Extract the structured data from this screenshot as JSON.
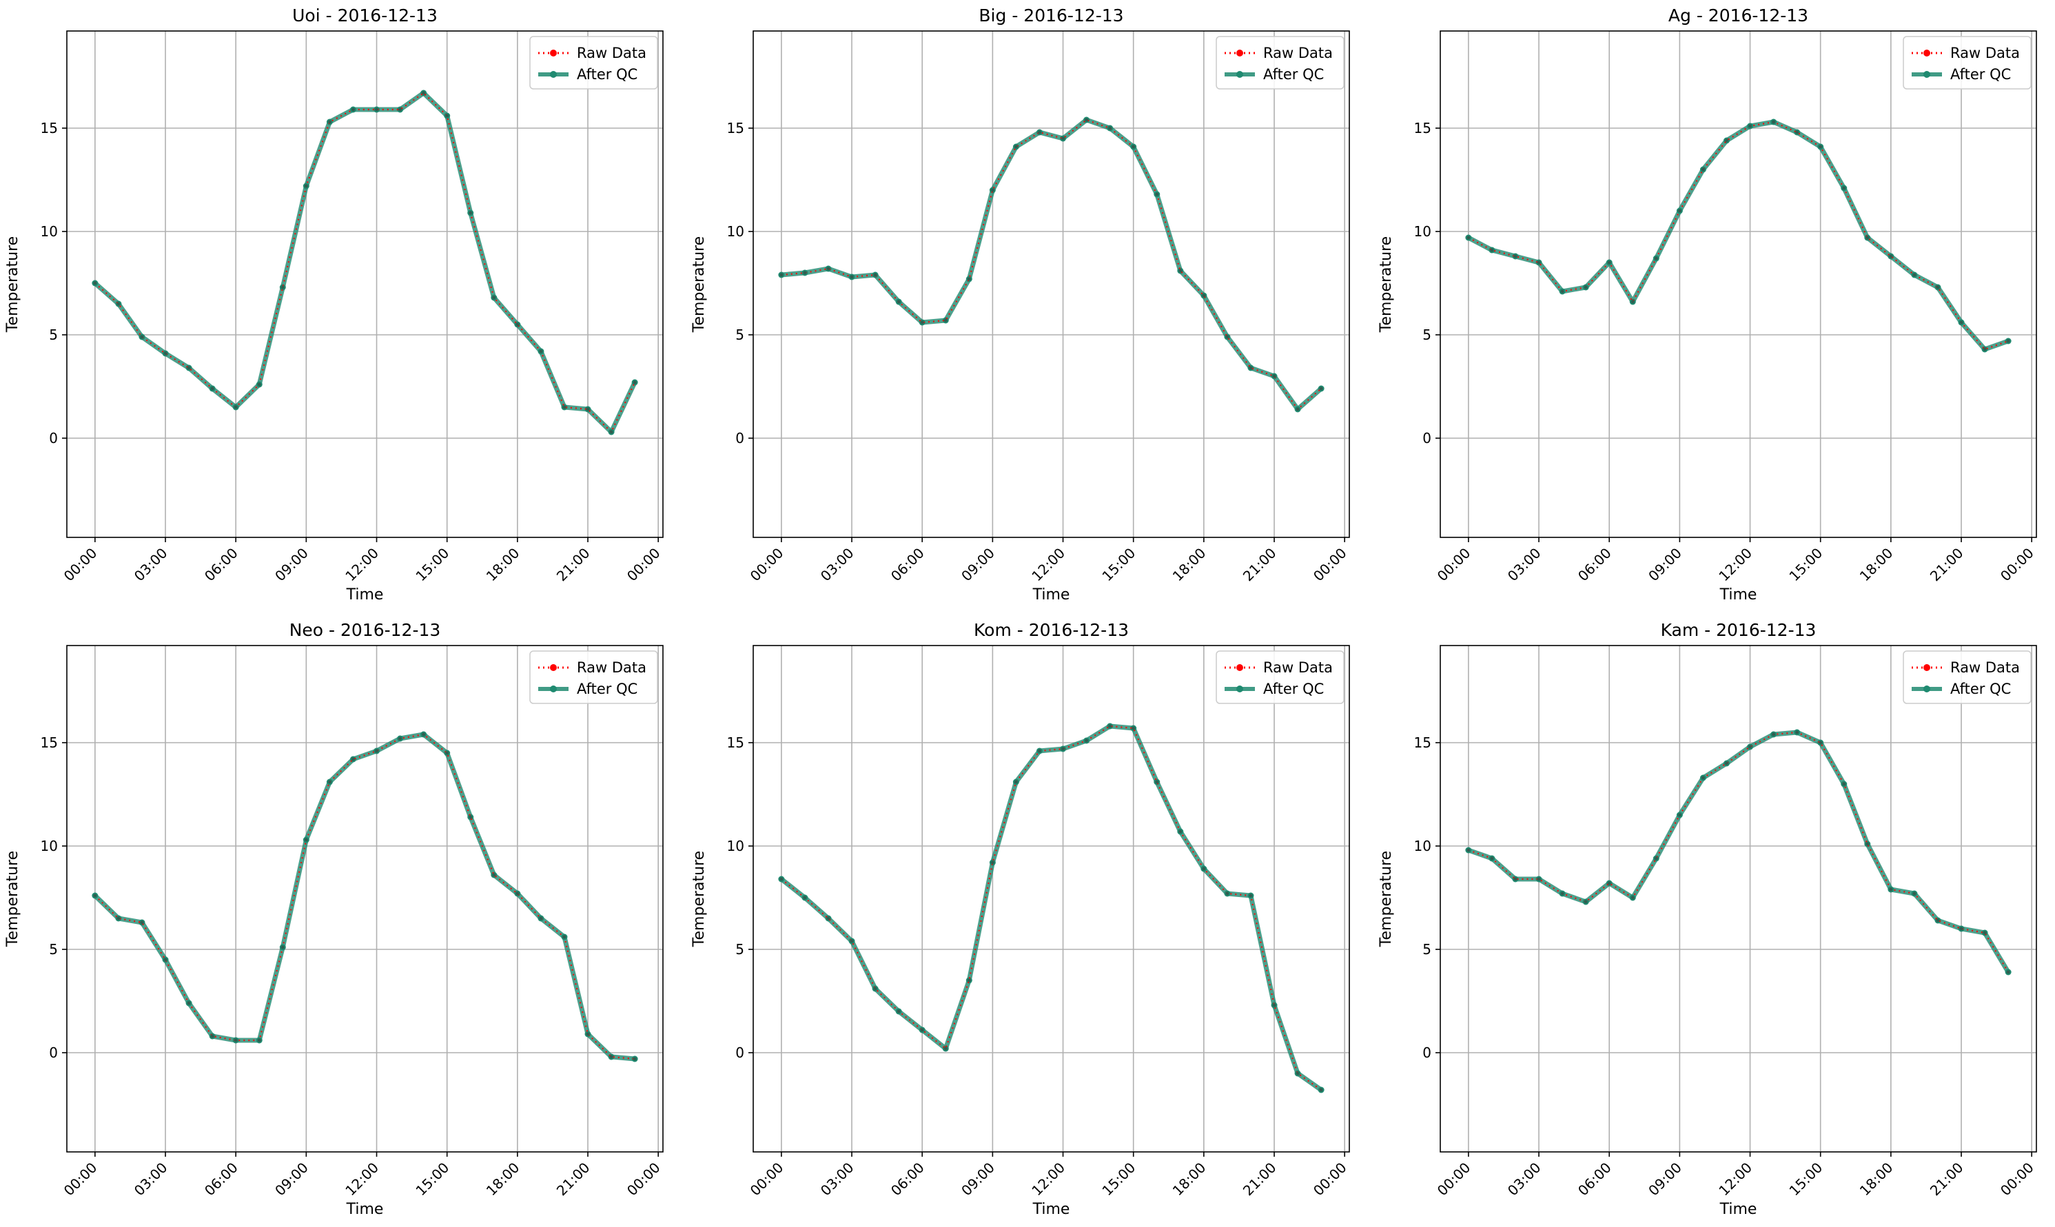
{
  "figure": {
    "colors": {
      "raw": "#ff0000",
      "qc": "#1f8a70",
      "grid": "#b0b0b0",
      "axes": "#000000"
    },
    "legend": {
      "raw_label": "Raw Data",
      "qc_label": "After QC",
      "placement": "upper right"
    }
  },
  "chart_data": [
    {
      "type": "line",
      "title": "Uoi - 2016-12-13",
      "xlabel": "Time",
      "ylabel": "Temperature",
      "xlim_hours": [
        -1.2,
        24.2
      ],
      "ylim": [
        -4.8,
        19.7
      ],
      "xtick_hours": [
        0,
        3,
        6,
        9,
        12,
        15,
        18,
        21,
        24
      ],
      "xtick_labels": [
        "00:00",
        "03:00",
        "06:00",
        "09:00",
        "12:00",
        "15:00",
        "18:00",
        "21:00",
        "00:00"
      ],
      "yticks": [
        0,
        5,
        10,
        15
      ],
      "ytick_labels": [
        "0",
        "5",
        "10",
        "15"
      ],
      "grid": true,
      "legend": "top-right",
      "x": [
        "00:00",
        "01:00",
        "02:00",
        "03:00",
        "04:00",
        "05:00",
        "06:00",
        "07:00",
        "08:00",
        "09:00",
        "10:00",
        "11:00",
        "12:00",
        "13:00",
        "14:00",
        "15:00",
        "16:00",
        "17:00",
        "18:00",
        "19:00",
        "20:00",
        "21:00",
        "22:00",
        "23:00"
      ],
      "series": [
        {
          "name": "Raw Data",
          "values": [
            7.5,
            6.5,
            4.9,
            4.1,
            3.4,
            2.4,
            1.5,
            2.6,
            7.3,
            12.2,
            15.3,
            15.9,
            15.9,
            15.9,
            16.7,
            15.6,
            10.9,
            6.8,
            5.5,
            4.2,
            1.5,
            1.4,
            0.3,
            2.7
          ]
        },
        {
          "name": "After QC",
          "values": [
            7.5,
            6.5,
            4.9,
            4.1,
            3.4,
            2.4,
            1.5,
            2.6,
            7.3,
            12.2,
            15.3,
            15.9,
            15.9,
            15.9,
            16.7,
            15.6,
            10.9,
            6.8,
            5.5,
            4.2,
            1.5,
            1.4,
            0.3,
            2.7
          ]
        }
      ]
    },
    {
      "type": "line",
      "title": "Big - 2016-12-13",
      "xlabel": "Time",
      "ylabel": "Temperature",
      "xlim_hours": [
        -1.2,
        24.2
      ],
      "ylim": [
        -4.8,
        19.7
      ],
      "xtick_hours": [
        0,
        3,
        6,
        9,
        12,
        15,
        18,
        21,
        24
      ],
      "xtick_labels": [
        "00:00",
        "03:00",
        "06:00",
        "09:00",
        "12:00",
        "15:00",
        "18:00",
        "21:00",
        "00:00"
      ],
      "yticks": [
        0,
        5,
        10,
        15
      ],
      "ytick_labels": [
        "0",
        "5",
        "10",
        "15"
      ],
      "grid": true,
      "legend": "top-right",
      "x": [
        "00:00",
        "01:00",
        "02:00",
        "03:00",
        "04:00",
        "05:00",
        "06:00",
        "07:00",
        "08:00",
        "09:00",
        "10:00",
        "11:00",
        "12:00",
        "13:00",
        "14:00",
        "15:00",
        "16:00",
        "17:00",
        "18:00",
        "19:00",
        "20:00",
        "21:00",
        "22:00",
        "23:00"
      ],
      "series": [
        {
          "name": "Raw Data",
          "values": [
            7.9,
            8.0,
            8.2,
            7.8,
            7.9,
            6.6,
            5.6,
            5.7,
            7.7,
            12.0,
            14.1,
            14.8,
            14.5,
            15.4,
            15.0,
            14.1,
            11.8,
            8.1,
            6.9,
            4.9,
            3.4,
            3.0,
            1.4,
            2.4
          ]
        },
        {
          "name": "After QC",
          "values": [
            7.9,
            8.0,
            8.2,
            7.8,
            7.9,
            6.6,
            5.6,
            5.7,
            7.7,
            12.0,
            14.1,
            14.8,
            14.5,
            15.4,
            15.0,
            14.1,
            11.8,
            8.1,
            6.9,
            4.9,
            3.4,
            3.0,
            1.4,
            2.4
          ]
        }
      ]
    },
    {
      "type": "line",
      "title": "Ag - 2016-12-13",
      "xlabel": "Time",
      "ylabel": "Temperature",
      "xlim_hours": [
        -1.2,
        24.2
      ],
      "ylim": [
        -4.8,
        19.7
      ],
      "xtick_hours": [
        0,
        3,
        6,
        9,
        12,
        15,
        18,
        21,
        24
      ],
      "xtick_labels": [
        "00:00",
        "03:00",
        "06:00",
        "09:00",
        "12:00",
        "15:00",
        "18:00",
        "21:00",
        "00:00"
      ],
      "yticks": [
        0,
        5,
        10,
        15
      ],
      "ytick_labels": [
        "0",
        "5",
        "10",
        "15"
      ],
      "grid": true,
      "legend": "top-right",
      "x": [
        "00:00",
        "01:00",
        "02:00",
        "03:00",
        "04:00",
        "05:00",
        "06:00",
        "07:00",
        "08:00",
        "09:00",
        "10:00",
        "11:00",
        "12:00",
        "13:00",
        "14:00",
        "15:00",
        "16:00",
        "17:00",
        "18:00",
        "19:00",
        "20:00",
        "21:00",
        "22:00",
        "23:00"
      ],
      "series": [
        {
          "name": "Raw Data",
          "values": [
            9.7,
            9.1,
            8.8,
            8.5,
            7.1,
            7.3,
            8.5,
            6.6,
            8.7,
            11.0,
            13.0,
            14.4,
            15.1,
            15.3,
            14.8,
            14.1,
            12.1,
            9.7,
            8.8,
            7.9,
            7.3,
            5.6,
            4.3,
            4.7
          ]
        },
        {
          "name": "After QC",
          "values": [
            9.7,
            9.1,
            8.8,
            8.5,
            7.1,
            7.3,
            8.5,
            6.6,
            8.7,
            11.0,
            13.0,
            14.4,
            15.1,
            15.3,
            14.8,
            14.1,
            12.1,
            9.7,
            8.8,
            7.9,
            7.3,
            5.6,
            4.3,
            4.7
          ]
        }
      ]
    },
    {
      "type": "line",
      "title": "Neo - 2016-12-13",
      "xlabel": "Time",
      "ylabel": "Temperature",
      "xlim_hours": [
        -1.2,
        24.2
      ],
      "ylim": [
        -4.8,
        19.7
      ],
      "xtick_hours": [
        0,
        3,
        6,
        9,
        12,
        15,
        18,
        21,
        24
      ],
      "xtick_labels": [
        "00:00",
        "03:00",
        "06:00",
        "09:00",
        "12:00",
        "15:00",
        "18:00",
        "21:00",
        "00:00"
      ],
      "yticks": [
        0,
        5,
        10,
        15
      ],
      "ytick_labels": [
        "0",
        "5",
        "10",
        "15"
      ],
      "grid": true,
      "legend": "top-right",
      "x": [
        "00:00",
        "01:00",
        "02:00",
        "03:00",
        "04:00",
        "05:00",
        "06:00",
        "07:00",
        "08:00",
        "09:00",
        "10:00",
        "11:00",
        "12:00",
        "13:00",
        "14:00",
        "15:00",
        "16:00",
        "17:00",
        "18:00",
        "19:00",
        "20:00",
        "21:00",
        "22:00",
        "23:00"
      ],
      "series": [
        {
          "name": "Raw Data",
          "values": [
            7.6,
            6.5,
            6.3,
            4.5,
            2.4,
            0.8,
            0.6,
            0.6,
            5.1,
            10.3,
            13.1,
            14.2,
            14.6,
            15.2,
            15.4,
            14.5,
            11.4,
            8.6,
            7.7,
            6.5,
            5.6,
            0.9,
            -0.2,
            -0.3
          ]
        },
        {
          "name": "After QC",
          "values": [
            7.6,
            6.5,
            6.3,
            4.5,
            2.4,
            0.8,
            0.6,
            0.6,
            5.1,
            10.3,
            13.1,
            14.2,
            14.6,
            15.2,
            15.4,
            14.5,
            11.4,
            8.6,
            7.7,
            6.5,
            5.6,
            0.9,
            -0.2,
            -0.3
          ]
        }
      ]
    },
    {
      "type": "line",
      "title": "Kom - 2016-12-13",
      "xlabel": "Time",
      "ylabel": "Temperature",
      "xlim_hours": [
        -1.2,
        24.2
      ],
      "ylim": [
        -4.8,
        19.7
      ],
      "xtick_hours": [
        0,
        3,
        6,
        9,
        12,
        15,
        18,
        21,
        24
      ],
      "xtick_labels": [
        "00:00",
        "03:00",
        "06:00",
        "09:00",
        "12:00",
        "15:00",
        "18:00",
        "21:00",
        "00:00"
      ],
      "yticks": [
        0,
        5,
        10,
        15
      ],
      "ytick_labels": [
        "0",
        "5",
        "10",
        "15"
      ],
      "grid": true,
      "legend": "top-right",
      "x": [
        "00:00",
        "01:00",
        "02:00",
        "03:00",
        "04:00",
        "05:00",
        "06:00",
        "07:00",
        "08:00",
        "09:00",
        "10:00",
        "11:00",
        "12:00",
        "13:00",
        "14:00",
        "15:00",
        "16:00",
        "17:00",
        "18:00",
        "19:00",
        "20:00",
        "21:00",
        "22:00",
        "23:00"
      ],
      "series": [
        {
          "name": "Raw Data",
          "values": [
            8.4,
            7.5,
            6.5,
            5.4,
            3.1,
            2.0,
            1.1,
            0.2,
            3.5,
            9.2,
            13.1,
            14.6,
            14.7,
            15.1,
            15.8,
            15.7,
            13.1,
            10.7,
            8.9,
            7.7,
            7.6,
            2.3,
            -1.0,
            -1.8
          ]
        },
        {
          "name": "After QC",
          "values": [
            8.4,
            7.5,
            6.5,
            5.4,
            3.1,
            2.0,
            1.1,
            0.2,
            3.5,
            9.2,
            13.1,
            14.6,
            14.7,
            15.1,
            15.8,
            15.7,
            13.1,
            10.7,
            8.9,
            7.7,
            7.6,
            2.3,
            -1.0,
            -1.8
          ]
        }
      ]
    },
    {
      "type": "line",
      "title": "Kam - 2016-12-13",
      "xlabel": "Time",
      "ylabel": "Temperature",
      "xlim_hours": [
        -1.2,
        24.2
      ],
      "ylim": [
        -4.8,
        19.7
      ],
      "xtick_hours": [
        0,
        3,
        6,
        9,
        12,
        15,
        18,
        21,
        24
      ],
      "xtick_labels": [
        "00:00",
        "03:00",
        "06:00",
        "09:00",
        "12:00",
        "15:00",
        "18:00",
        "21:00",
        "00:00"
      ],
      "yticks": [
        0,
        5,
        10,
        15
      ],
      "ytick_labels": [
        "0",
        "5",
        "10",
        "15"
      ],
      "grid": true,
      "legend": "top-right",
      "x": [
        "00:00",
        "01:00",
        "02:00",
        "03:00",
        "04:00",
        "05:00",
        "06:00",
        "07:00",
        "08:00",
        "09:00",
        "10:00",
        "11:00",
        "12:00",
        "13:00",
        "14:00",
        "15:00",
        "16:00",
        "17:00",
        "18:00",
        "19:00",
        "20:00",
        "21:00",
        "22:00",
        "23:00"
      ],
      "series": [
        {
          "name": "Raw Data",
          "values": [
            9.8,
            9.4,
            8.4,
            8.4,
            7.7,
            7.3,
            8.2,
            7.5,
            9.4,
            11.5,
            13.3,
            14.0,
            14.8,
            15.4,
            15.5,
            15.0,
            13.0,
            10.1,
            7.9,
            7.7,
            6.4,
            6.0,
            5.8,
            3.9
          ]
        },
        {
          "name": "After QC",
          "values": [
            9.8,
            9.4,
            8.4,
            8.4,
            7.7,
            7.3,
            8.2,
            7.5,
            9.4,
            11.5,
            13.3,
            14.0,
            14.8,
            15.4,
            15.5,
            15.0,
            13.0,
            10.1,
            7.9,
            7.7,
            6.4,
            6.0,
            5.8,
            3.9
          ]
        }
      ]
    }
  ]
}
